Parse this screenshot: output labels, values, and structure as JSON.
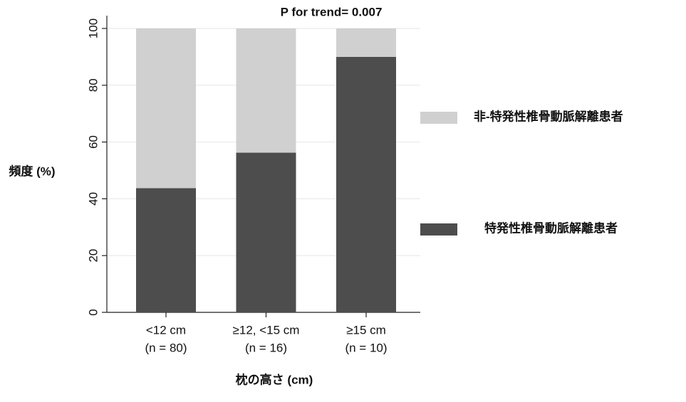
{
  "chart_data": {
    "type": "stacked_bar",
    "title": "P for trend= 0.007",
    "y_label": "頻度 (%)",
    "x_label": "枕の高さ (cm)",
    "categories": [
      [
        "<12 cm",
        "(n = 80)"
      ],
      [
        "≥12, <15 cm",
        "(n = 16)"
      ],
      [
        "≥15 cm",
        "(n = 10)"
      ]
    ],
    "series": [
      {
        "name": "特発性椎骨動脈解離患者",
        "color": "#4d4d4d",
        "values": [
          43.75,
          56.25,
          90
        ]
      },
      {
        "name": "非-特発性椎骨動脈解離患者",
        "color": "#d0d0d0",
        "values": [
          56.25,
          43.75,
          10
        ]
      }
    ],
    "ylim": [
      0,
      100
    ],
    "yticks": [
      0,
      20,
      40,
      60,
      80,
      100
    ],
    "grid": true
  }
}
